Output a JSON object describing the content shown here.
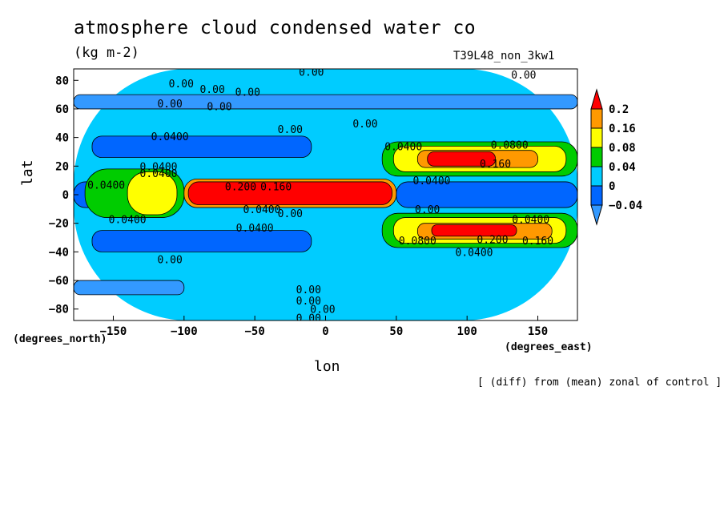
{
  "chart_data": {
    "type": "heatmap",
    "title": "atmosphere cloud condensed water co",
    "units": "(kg m-2)",
    "run_label": "T39L48_non_3kw1",
    "xlabel": "lon",
    "ylabel": "lat",
    "x_units": "(degrees_east)",
    "y_units": "(degrees_north)",
    "footnote": "[ (diff) from (mean) zonal of control ]",
    "xlim": [
      -178,
      178
    ],
    "ylim": [
      -88,
      88
    ],
    "x_ticks": [
      "-150",
      "-100",
      "-50",
      "0",
      "50",
      "100",
      "150"
    ],
    "y_ticks": [
      "80",
      "60",
      "40",
      "20",
      "0",
      "-20",
      "-40",
      "-60",
      "-80"
    ],
    "colorbar": {
      "levels": [
        "0.2",
        "0.16",
        "0.08",
        "0.04",
        "0",
        "-0.04"
      ],
      "colors": [
        "#ff0000",
        "#ff9900",
        "#ffff00",
        "#00cc00",
        "#00ccff",
        "#0066ff",
        "#3399ff"
      ]
    },
    "regions": [
      {
        "level": "0",
        "color": "#00ccff",
        "lon": [
          -178,
          178
        ],
        "lat": [
          -88,
          88
        ]
      },
      {
        "level": "-0.04",
        "color": "#3399ff",
        "lon": [
          -178,
          -100
        ],
        "lat": [
          -70,
          -60
        ]
      },
      {
        "level": "-0.04",
        "color": "#3399ff",
        "lon": [
          -178,
          178
        ],
        "lat": [
          60,
          70
        ]
      },
      {
        "level": "-0.04",
        "color": "#0066ff",
        "lon": [
          -165,
          -10
        ],
        "lat": [
          26,
          41
        ]
      },
      {
        "level": "-0.04",
        "color": "#0066ff",
        "lon": [
          -165,
          -10
        ],
        "lat": [
          -40,
          -25
        ]
      },
      {
        "level": "-0.04",
        "color": "#0066ff",
        "lon": [
          -178,
          -100
        ],
        "lat": [
          -9,
          9
        ]
      },
      {
        "level": "-0.04",
        "color": "#0066ff",
        "lon": [
          50,
          178
        ],
        "lat": [
          -9,
          9
        ]
      },
      {
        "level": "0.04",
        "color": "#00cc00",
        "lon": [
          40,
          178
        ],
        "lat": [
          13,
          37
        ]
      },
      {
        "level": "0.04",
        "color": "#00cc00",
        "lon": [
          40,
          178
        ],
        "lat": [
          -37,
          -13
        ]
      },
      {
        "level": "0.04",
        "color": "#00cc00",
        "lon": [
          -170,
          -100
        ],
        "lat": [
          -16,
          18
        ]
      },
      {
        "level": "0.08",
        "color": "#ffff00",
        "lon": [
          48,
          170
        ],
        "lat": [
          16,
          34
        ]
      },
      {
        "level": "0.08",
        "color": "#ffff00",
        "lon": [
          48,
          170
        ],
        "lat": [
          -34,
          -16
        ]
      },
      {
        "level": "0.08",
        "color": "#ffff00",
        "lon": [
          -140,
          -105
        ],
        "lat": [
          -14,
          16
        ]
      },
      {
        "level": "0.16",
        "color": "#ff9900",
        "lon": [
          -100,
          50
        ],
        "lat": [
          -9,
          11
        ]
      },
      {
        "level": "0.16",
        "color": "#ff9900",
        "lon": [
          65,
          150
        ],
        "lat": [
          19,
          31
        ]
      },
      {
        "level": "0.16",
        "color": "#ff9900",
        "lon": [
          65,
          160
        ],
        "lat": [
          -31,
          -20
        ]
      },
      {
        "level": "0.2",
        "color": "#ff0000",
        "lon": [
          -97,
          47
        ],
        "lat": [
          -7,
          9
        ]
      },
      {
        "level": "0.2",
        "color": "#ff0000",
        "lon": [
          72,
          120
        ],
        "lat": [
          20,
          30
        ]
      },
      {
        "level": "0.2",
        "color": "#ff0000",
        "lon": [
          75,
          135
        ],
        "lat": [
          -29,
          -21
        ]
      }
    ],
    "contour_labels": [
      {
        "text": "0.00",
        "lon": -10,
        "lat": 86
      },
      {
        "text": "0.00",
        "lon": -102,
        "lat": 78
      },
      {
        "text": "0.00",
        "lon": -80,
        "lat": 74
      },
      {
        "text": "0.00",
        "lon": -55,
        "lat": 72
      },
      {
        "text": "0.00",
        "lon": -110,
        "lat": 64
      },
      {
        "text": "0.00",
        "lon": -75,
        "lat": 62
      },
      {
        "text": "0.00",
        "lon": 140,
        "lat": 84
      },
      {
        "text": "0.00",
        "lon": -25,
        "lat": 46
      },
      {
        "text": "0.00",
        "lon": 28,
        "lat": 50
      },
      {
        "text": "0.0400",
        "lon": -110,
        "lat": 41
      },
      {
        "text": "0.0400",
        "lon": -118,
        "lat": 20
      },
      {
        "text": "0.0400",
        "lon": -118,
        "lat": 15
      },
      {
        "text": "0.0400",
        "lon": -155,
        "lat": 7
      },
      {
        "text": "0.0400",
        "lon": 55,
        "lat": 34
      },
      {
        "text": "0.0400",
        "lon": 75,
        "lat": 10
      },
      {
        "text": "0.0800",
        "lon": 130,
        "lat": 35
      },
      {
        "text": "0.160",
        "lon": 120,
        "lat": 22
      },
      {
        "text": "0.200",
        "lon": -60,
        "lat": 6
      },
      {
        "text": "0.160",
        "lon": -35,
        "lat": 6
      },
      {
        "text": "0.0400",
        "lon": -45,
        "lat": -10
      },
      {
        "text": "0.00",
        "lon": -25,
        "lat": -13
      },
      {
        "text": "0.0400",
        "lon": -140,
        "lat": -17
      },
      {
        "text": "0.00",
        "lon": 72,
        "lat": -10
      },
      {
        "text": "0.0400",
        "lon": 145,
        "lat": -17
      },
      {
        "text": "0.0400",
        "lon": -50,
        "lat": -23
      },
      {
        "text": "0.0800",
        "lon": 65,
        "lat": -32
      },
      {
        "text": "0.200",
        "lon": 118,
        "lat": -31
      },
      {
        "text": "0.160",
        "lon": 150,
        "lat": -32
      },
      {
        "text": "0.0400",
        "lon": 105,
        "lat": -40
      },
      {
        "text": "0.00",
        "lon": -110,
        "lat": -45
      },
      {
        "text": "0.00",
        "lon": -12,
        "lat": -66
      },
      {
        "text": "0.00",
        "lon": -12,
        "lat": -74
      },
      {
        "text": "0.00",
        "lon": -2,
        "lat": -80
      },
      {
        "text": "0.00",
        "lon": -12,
        "lat": -86
      }
    ],
    "grid": false,
    "colorbar_position": "right"
  }
}
